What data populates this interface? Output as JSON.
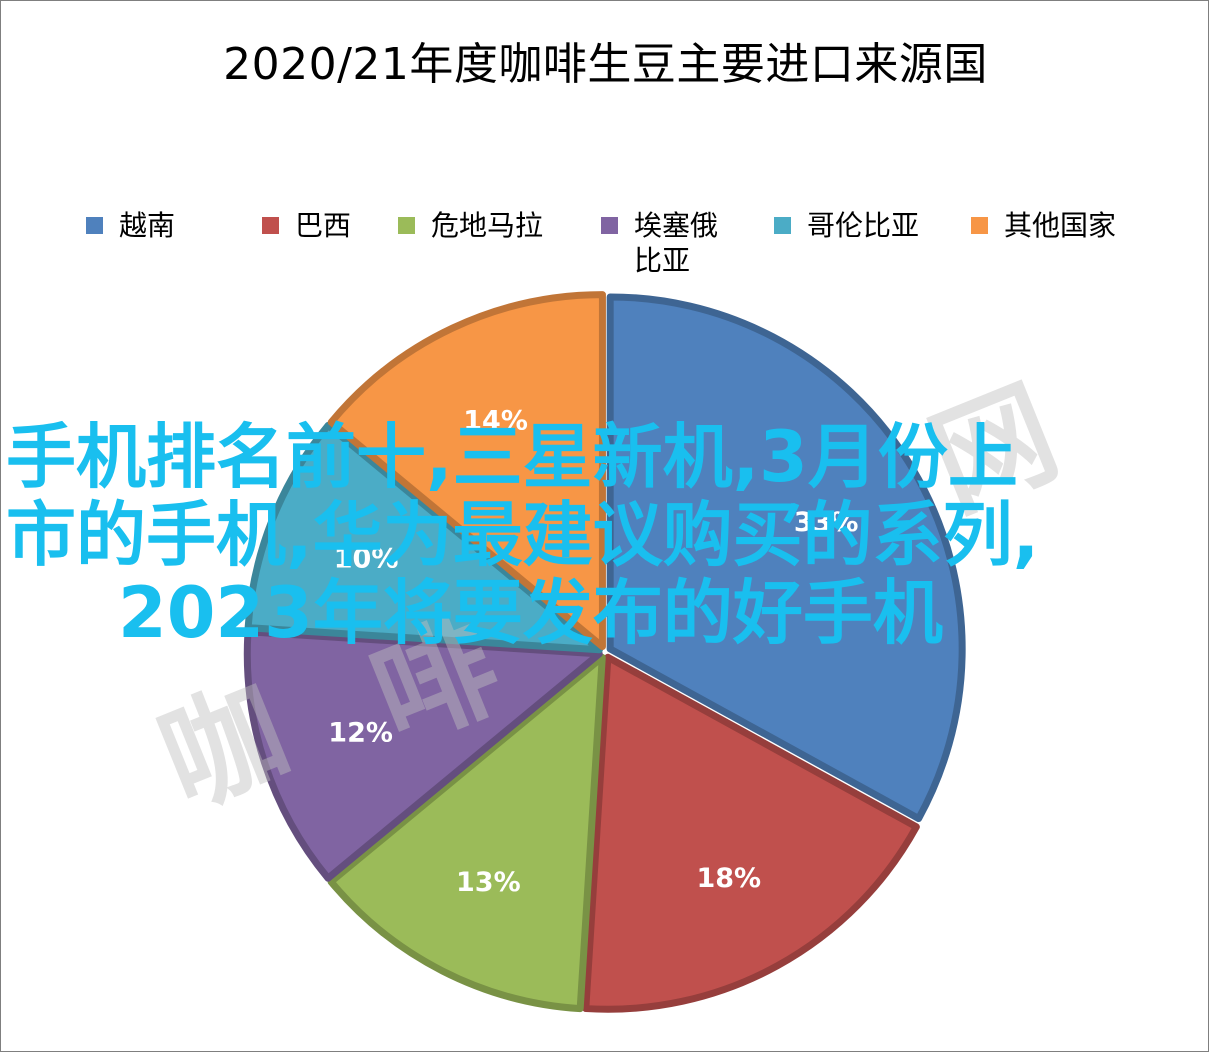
{
  "chart_data": {
    "type": "pie",
    "title": "2020/21年度咖啡生豆主要进口来源国",
    "categories": [
      "越南",
      "巴西",
      "危地马拉",
      "埃塞俄比亚",
      "哥伦比亚",
      "其他国家"
    ],
    "values": [
      33,
      18,
      13,
      12,
      10,
      14
    ],
    "value_labels": [
      "33%",
      "18%",
      "13%",
      "12%",
      "10%",
      "14%"
    ],
    "legend_position": "top",
    "colors": [
      "#4f81bd",
      "#c0504d",
      "#9bbb59",
      "#8064a2",
      "#4bacc6",
      "#f79646"
    ],
    "legend_labels": [
      [
        "越南"
      ],
      [
        "巴西"
      ],
      [
        "危地马拉"
      ],
      [
        "埃塞俄",
        "比亚"
      ],
      [
        "哥伦比亚"
      ],
      [
        "其他国家"
      ]
    ]
  },
  "watermark": {
    "lines": [
      "手机排名前十,三星新机,3月份上",
      "市的手机,华为最建议购买的系列,",
      "2023年将要发布的好手机"
    ],
    "faint_text": [
      "咖",
      "啡",
      "网"
    ]
  }
}
